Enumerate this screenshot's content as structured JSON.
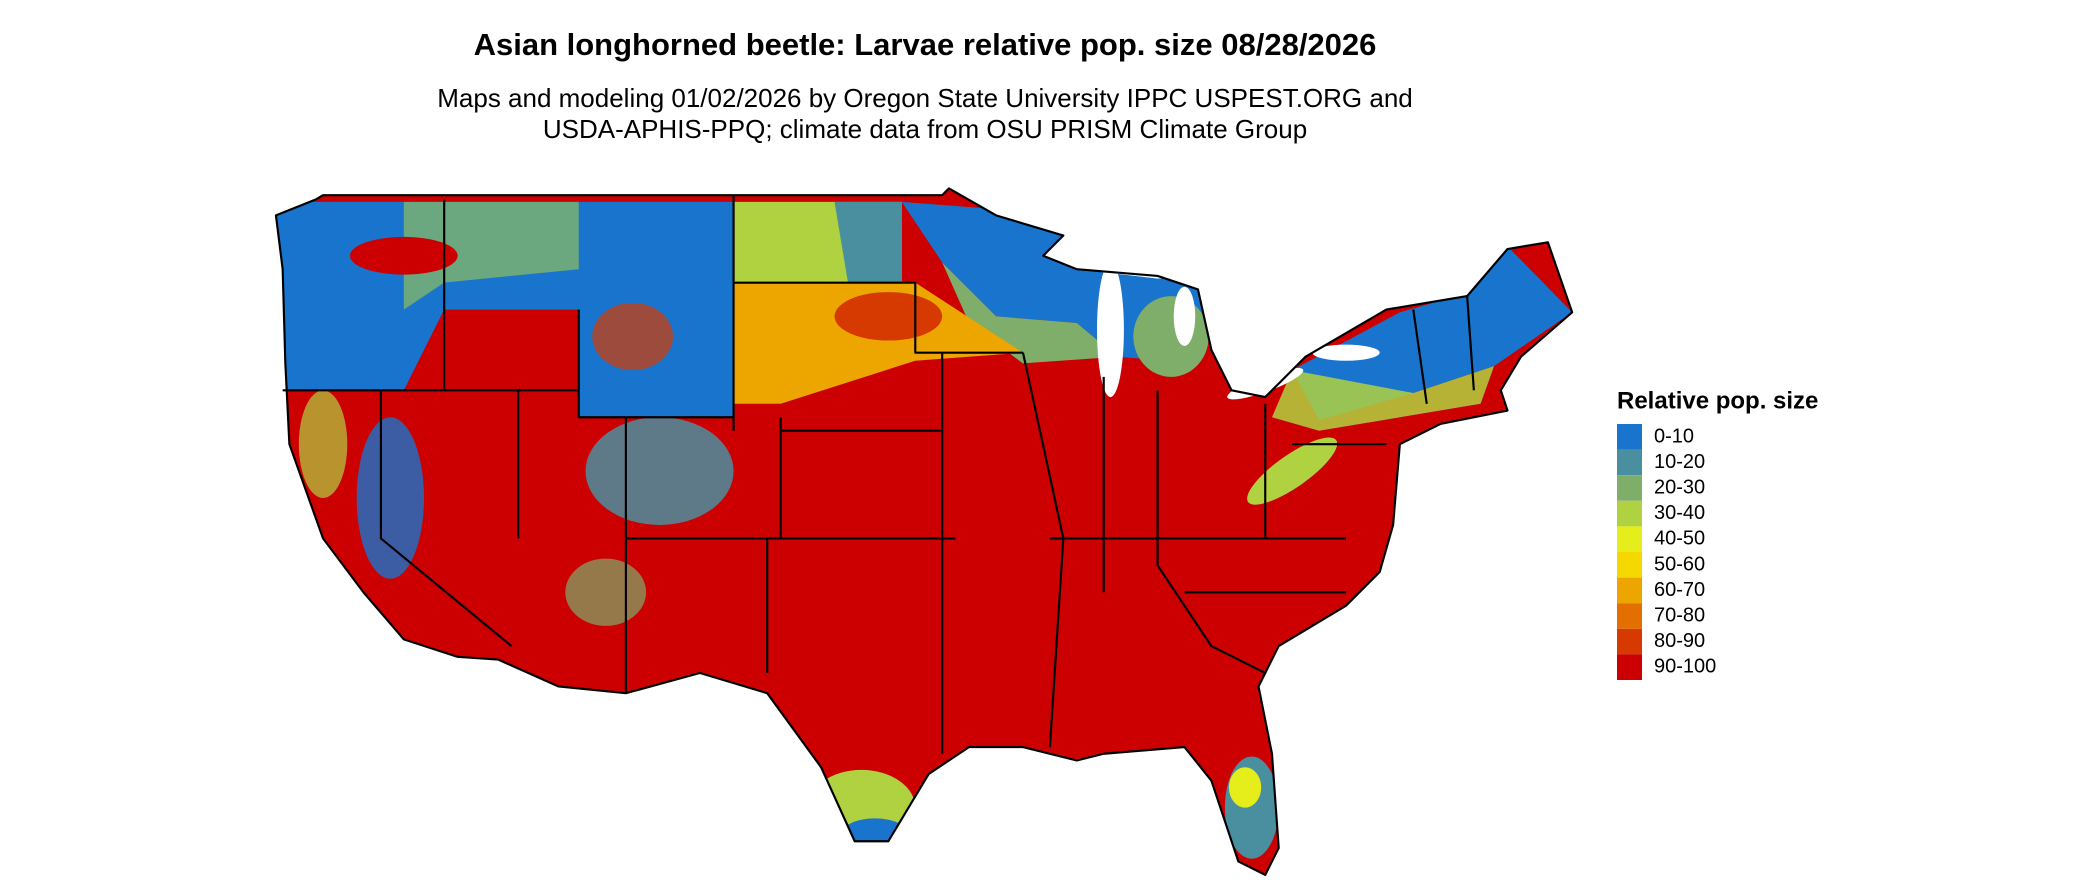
{
  "title": "Asian longhorned beetle: Larvae relative pop. size 08/28/2026",
  "subtitle": [
    "Maps and modeling 01/02/2026 by Oregon State University IPPC USPEST.ORG and",
    "USDA-APHIS-PPQ; climate data from OSU PRISM Climate Group"
  ],
  "legend": {
    "title": "Relative pop. size",
    "items": [
      {
        "label": "0-10",
        "color": "#1874cd"
      },
      {
        "label": "10-20",
        "color": "#4a8fa0"
      },
      {
        "label": "20-30",
        "color": "#7fad6a"
      },
      {
        "label": "30-40",
        "color": "#b0d140"
      },
      {
        "label": "40-50",
        "color": "#e5ee1a"
      },
      {
        "label": "50-60",
        "color": "#f5d800"
      },
      {
        "label": "60-70",
        "color": "#eda500"
      },
      {
        "label": "70-80",
        "color": "#e36f00"
      },
      {
        "label": "80-90",
        "color": "#d63a00"
      },
      {
        "label": "90-100",
        "color": "#cc0000"
      }
    ]
  }
}
